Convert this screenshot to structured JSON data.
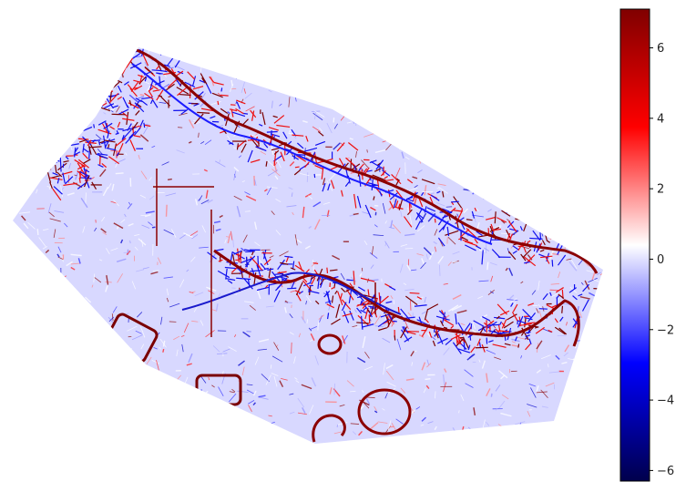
{
  "chart_data": {
    "type": "heatmap",
    "title": "",
    "xlabel": "",
    "ylabel": "",
    "axes_visible": false,
    "grid": false,
    "colormap": "seismic",
    "colormap_stops": [
      "#00004c",
      "#0000ff",
      "#ffffff",
      "#ff0000",
      "#800000"
    ],
    "colorbar": {
      "position": "right",
      "vmin": -6.3,
      "vmax": 7.1,
      "ticks": [
        -6,
        -4,
        -2,
        0,
        2,
        4,
        6
      ],
      "tick_labels": [
        "−6",
        "−4",
        "−2",
        "0",
        "2",
        "4",
        "6"
      ]
    },
    "background_value": -0.8,
    "background_color": "#d8d8ff"
  }
}
